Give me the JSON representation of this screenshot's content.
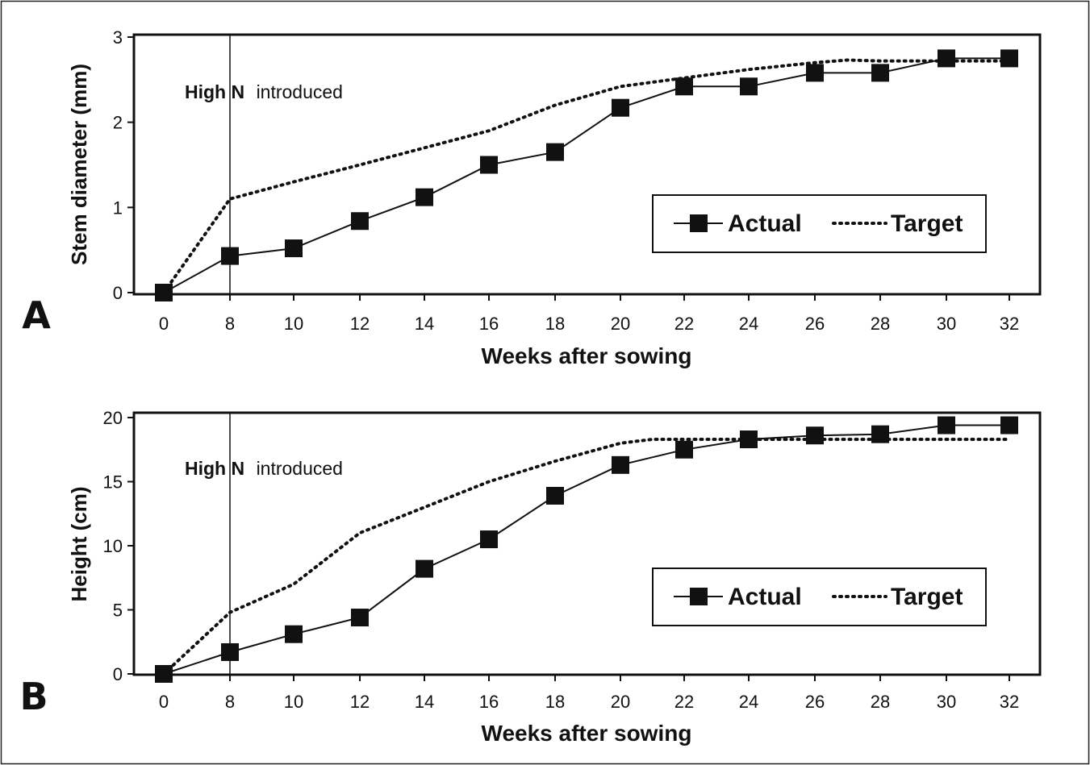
{
  "chart_data": [
    {
      "panel_label": "A",
      "type": "line",
      "x": [
        0,
        8,
        10,
        12,
        14,
        16,
        18,
        20,
        22,
        24,
        26,
        28,
        30,
        32
      ],
      "xlabel": "Weeks after sowing",
      "ylabel": "Stem diameter (mm)",
      "ylim": [
        0,
        3
      ],
      "yticks": [
        "0",
        "1",
        "2",
        "3"
      ],
      "xticks": [
        "0",
        "8",
        "10",
        "12",
        "14",
        "16",
        "18",
        "20",
        "22",
        "24",
        "26",
        "28",
        "30",
        "32"
      ],
      "series": [
        {
          "name": "Actual",
          "style": "solid-square-markers",
          "values": [
            0,
            0.43,
            0.52,
            0.84,
            1.12,
            1.5,
            1.65,
            2.17,
            2.42,
            2.42,
            2.58,
            2.58,
            2.75,
            2.75
          ]
        },
        {
          "name": "Target",
          "style": "dotted",
          "x": [
            0,
            8,
            10,
            12,
            14,
            16,
            18,
            20,
            22,
            24,
            26,
            27,
            28,
            30,
            32
          ],
          "values": [
            0,
            1.1,
            1.3,
            1.5,
            1.7,
            1.9,
            2.2,
            2.42,
            2.52,
            2.62,
            2.7,
            2.73,
            2.72,
            2.72,
            2.72
          ]
        }
      ],
      "annotation": {
        "x": 8,
        "bold_text": "High N",
        "text": "introduced"
      },
      "legend_position": "lower-right",
      "grid": false
    },
    {
      "panel_label": "B",
      "type": "line",
      "x": [
        0,
        8,
        10,
        12,
        14,
        16,
        18,
        20,
        22,
        24,
        26,
        28,
        30,
        32
      ],
      "xlabel": "Weeks after sowing",
      "ylabel": "Height (cm)",
      "ylim": [
        0,
        20
      ],
      "yticks": [
        "0",
        "5",
        "10",
        "15",
        "20"
      ],
      "xticks": [
        "0",
        "8",
        "10",
        "12",
        "14",
        "16",
        "18",
        "20",
        "22",
        "24",
        "26",
        "28",
        "30",
        "32"
      ],
      "series": [
        {
          "name": "Actual",
          "style": "solid-square-markers",
          "values": [
            0,
            1.7,
            3.1,
            4.4,
            8.2,
            10.5,
            13.9,
            16.3,
            17.5,
            18.3,
            18.6,
            18.7,
            19.4,
            19.4
          ]
        },
        {
          "name": "Target",
          "style": "dotted",
          "x": [
            0,
            8,
            10,
            12,
            14,
            16,
            18,
            20,
            21,
            22,
            24,
            26,
            28,
            30,
            32
          ],
          "values": [
            0,
            4.8,
            7.0,
            11.0,
            13.0,
            15.0,
            16.6,
            18.0,
            18.3,
            18.3,
            18.3,
            18.3,
            18.3,
            18.3,
            18.3
          ]
        }
      ],
      "annotation": {
        "x": 8,
        "bold_text": "High N",
        "text": "introduced"
      },
      "legend_position": "lower-right",
      "grid": false
    }
  ]
}
